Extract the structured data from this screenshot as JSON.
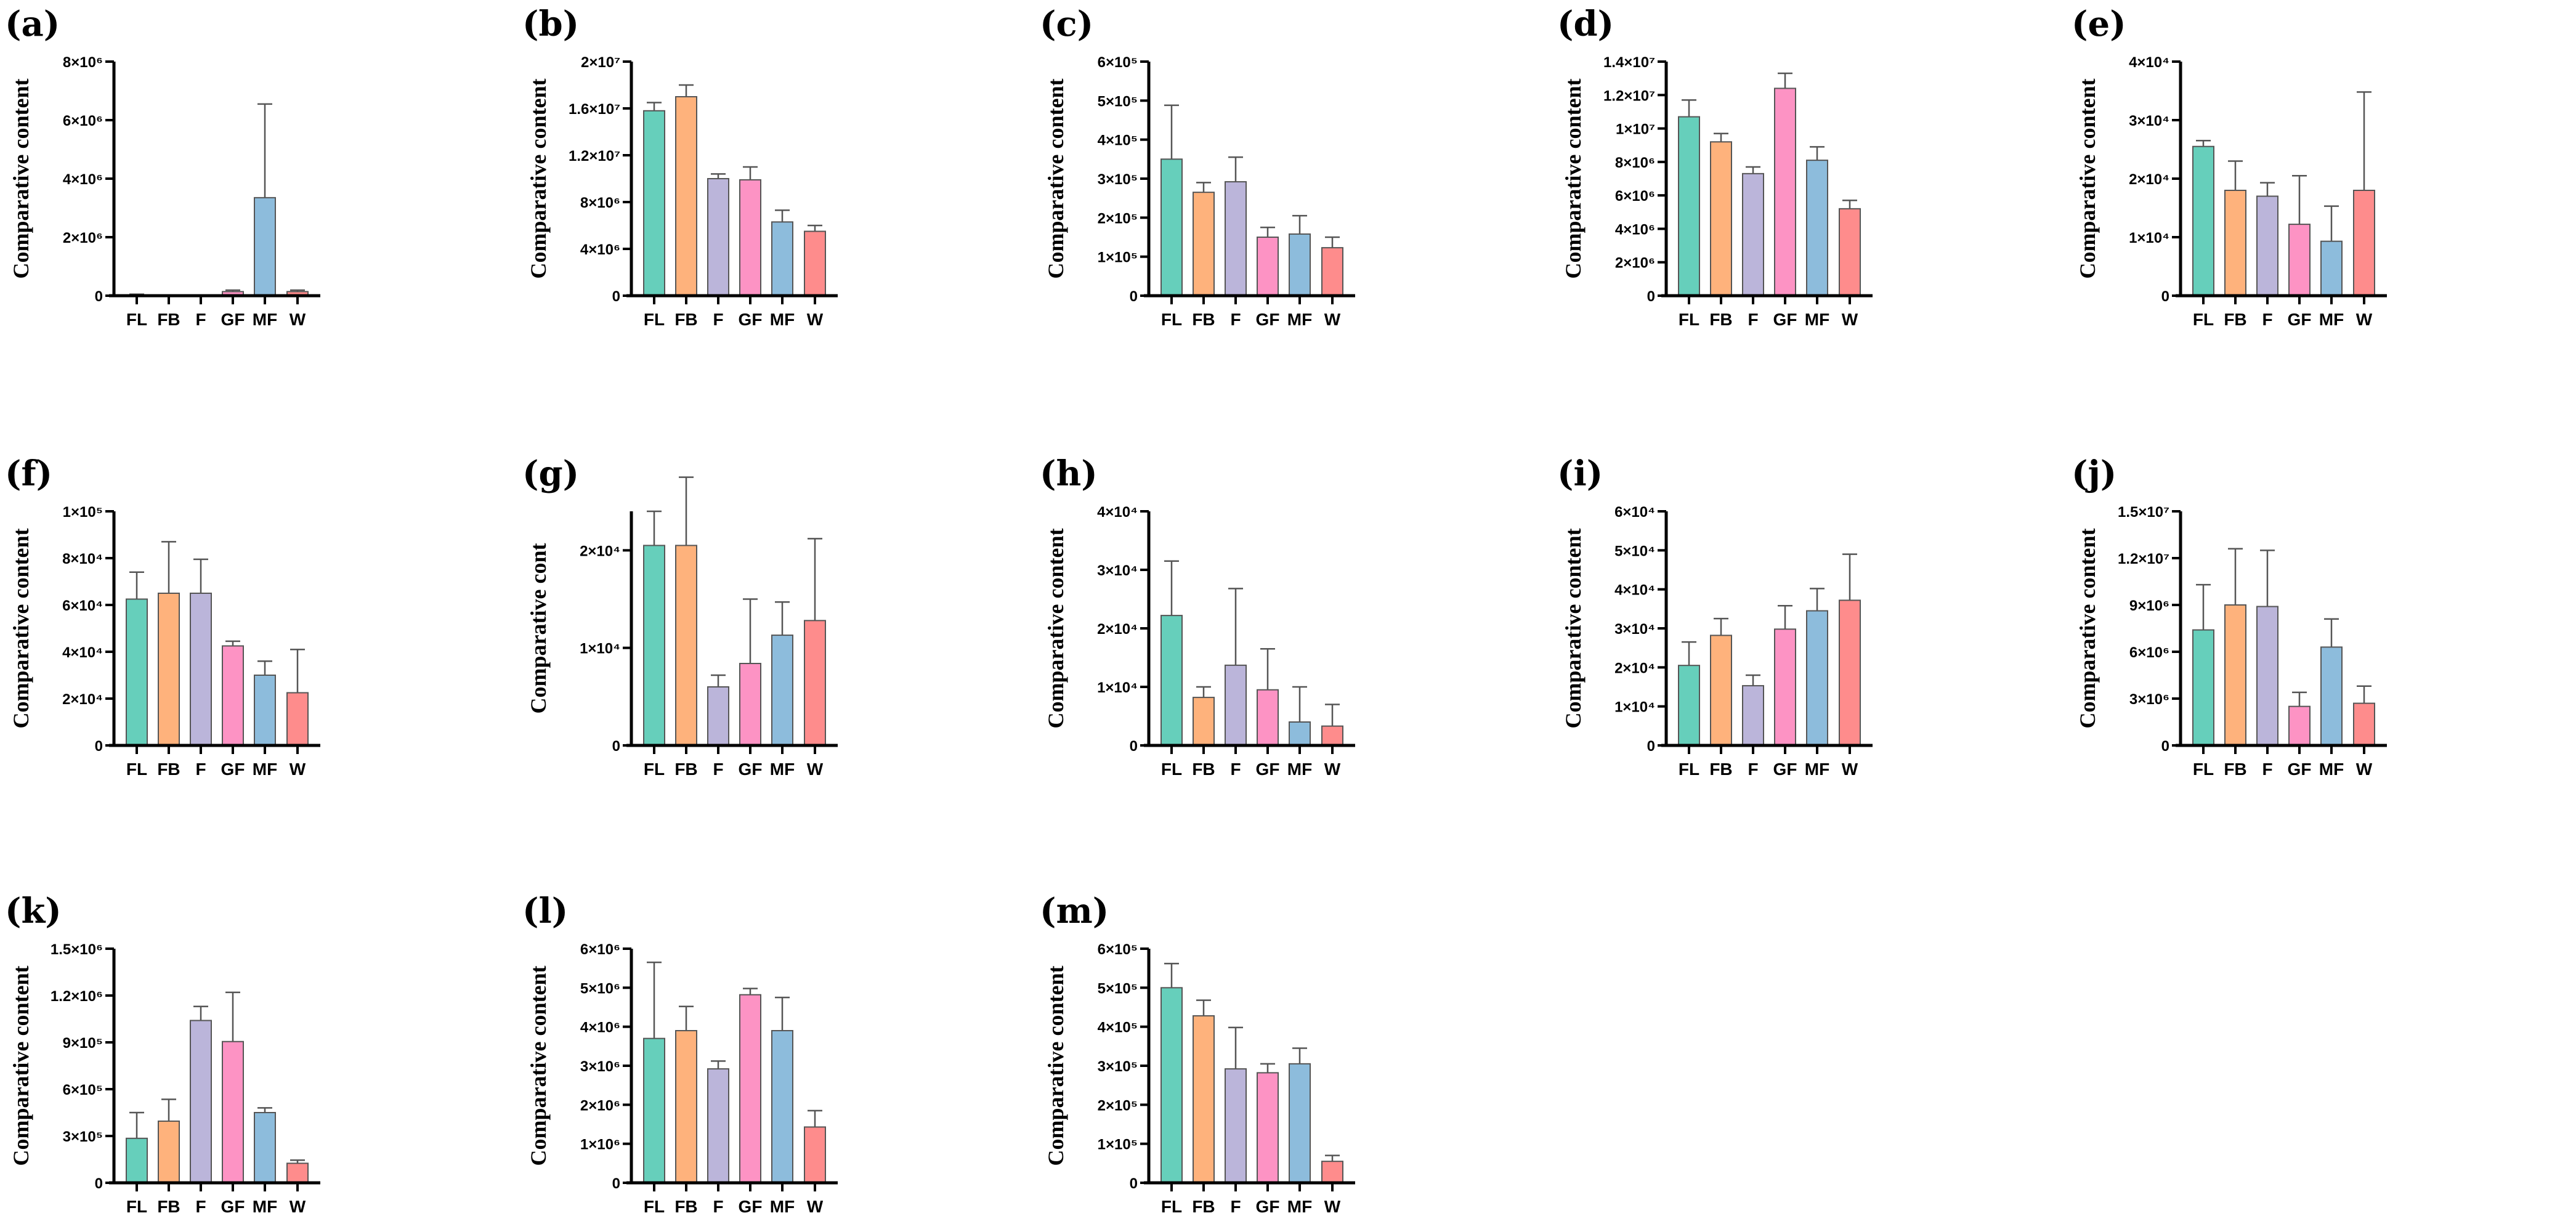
{
  "colors": {
    "FL": "#66cfbb",
    "FB": "#feb27c",
    "F": "#bbb5da",
    "GF": "#fd93c4",
    "MF": "#8dbcdc",
    "W": "#fe8c8c",
    "outline": "#555555",
    "errorbar": "#555555",
    "axis": "#000000"
  },
  "chart_data": [
    {
      "panel": "(a)",
      "type": "bar",
      "ylabel": "Comparative content",
      "categories": [
        "FL",
        "FB",
        "F",
        "GF",
        "MF",
        "W"
      ],
      "values": [
        10000,
        5000,
        2000,
        140000,
        3350000,
        140000
      ],
      "error_upper": [
        50000,
        10000,
        3000,
        190000,
        6550000,
        190000
      ],
      "ylim": [
        0,
        8000000
      ],
      "yticks": [
        0,
        2000000,
        4000000,
        6000000,
        8000000
      ],
      "ytick_labels": [
        "0",
        "2×10⁶",
        "4×10⁶",
        "6×10⁶",
        "8×10⁶"
      ]
    },
    {
      "panel": "(b)",
      "type": "bar",
      "ylabel": "Comparative content",
      "categories": [
        "FL",
        "FB",
        "F",
        "GF",
        "MF",
        "W"
      ],
      "values": [
        15800000,
        17000000,
        10000000,
        9900000,
        6300000,
        5500000
      ],
      "error_upper": [
        16500000,
        18000000,
        10400000,
        11000000,
        7300000,
        6000000
      ],
      "ylim": [
        0,
        20000000
      ],
      "yticks": [
        0,
        4000000,
        8000000,
        12000000,
        16000000,
        20000000
      ],
      "ytick_labels": [
        "0",
        "4×10⁶",
        "8×10⁶",
        "1.2×10⁷",
        "1.6×10⁷",
        "2×10⁷"
      ]
    },
    {
      "panel": "(c)",
      "type": "bar",
      "ylabel": "Comparative content",
      "categories": [
        "FL",
        "FB",
        "F",
        "GF",
        "MF",
        "W"
      ],
      "values": [
        350000,
        265000,
        292000,
        150000,
        158000,
        123000
      ],
      "error_upper": [
        488000,
        290000,
        355000,
        175000,
        205000,
        150000
      ],
      "ylim": [
        0,
        600000
      ],
      "yticks": [
        0,
        100000,
        200000,
        300000,
        400000,
        500000,
        600000
      ],
      "ytick_labels": [
        "0",
        "1×10⁵",
        "2×10⁵",
        "3×10⁵",
        "4×10⁵",
        "5×10⁵",
        "6×10⁵"
      ]
    },
    {
      "panel": "(d)",
      "type": "bar",
      "ylabel": "Comparative content",
      "categories": [
        "FL",
        "FB",
        "F",
        "GF",
        "MF",
        "W"
      ],
      "values": [
        10700000,
        9200000,
        7300000,
        12400000,
        8100000,
        5200000
      ],
      "error_upper": [
        11700000,
        9700000,
        7700000,
        13300000,
        8900000,
        5700000
      ],
      "ylim": [
        0,
        14000000
      ],
      "yticks": [
        0,
        2000000,
        4000000,
        6000000,
        8000000,
        10000000,
        12000000,
        14000000
      ],
      "ytick_labels": [
        "0",
        "2×10⁶",
        "4×10⁶",
        "6×10⁶",
        "8×10⁶",
        "1×10⁷",
        "1.2×10⁷",
        "1.4×10⁷"
      ]
    },
    {
      "panel": "(e)",
      "type": "bar",
      "ylabel": "Comparative content",
      "categories": [
        "FL",
        "FB",
        "F",
        "GF",
        "MF",
        "W"
      ],
      "values": [
        25500,
        18000,
        17000,
        12200,
        9300,
        18000
      ],
      "error_upper": [
        26500,
        23000,
        19300,
        20500,
        15300,
        34800
      ],
      "ylim": [
        0,
        40000
      ],
      "yticks": [
        0,
        10000,
        20000,
        30000,
        40000
      ],
      "ytick_labels": [
        "0",
        "1×10⁴",
        "2×10⁴",
        "3×10⁴",
        "4×10⁴"
      ]
    },
    {
      "panel": "(f)",
      "type": "bar",
      "ylabel": "Comparative content",
      "categories": [
        "FL",
        "FB",
        "F",
        "GF",
        "MF",
        "W"
      ],
      "values": [
        62500,
        65000,
        65000,
        42500,
        30000,
        22500
      ],
      "error_upper": [
        74000,
        87000,
        79500,
        44500,
        36000,
        41000
      ],
      "ylim": [
        0,
        100000
      ],
      "yticks": [
        0,
        20000,
        40000,
        60000,
        80000,
        100000
      ],
      "ytick_labels": [
        "0",
        "2×10⁴",
        "4×10⁴",
        "6×10⁴",
        "8×10⁴",
        "1×10⁵"
      ]
    },
    {
      "panel": "(g)",
      "type": "bar",
      "ylabel": "Comparative cont",
      "categories": [
        "FL",
        "FB",
        "F",
        "GF",
        "MF",
        "W"
      ],
      "values": [
        20500,
        20500,
        6000,
        8400,
        11300,
        12800
      ],
      "error_upper": [
        24000,
        27500,
        7200,
        15000,
        14700,
        21200
      ],
      "ylim": [
        0,
        24000
      ],
      "yticks": [
        0,
        10000,
        20000
      ],
      "ytick_labels": [
        "0",
        "1×10⁴",
        "2×10⁴"
      ]
    },
    {
      "panel": "(h)",
      "type": "bar",
      "ylabel": "Comparative content",
      "categories": [
        "FL",
        "FB",
        "F",
        "GF",
        "MF",
        "W"
      ],
      "values": [
        22200,
        8200,
        13700,
        9500,
        4000,
        3300
      ],
      "error_upper": [
        31500,
        10000,
        26800,
        16500,
        10000,
        7000
      ],
      "ylim": [
        0,
        40000
      ],
      "yticks": [
        0,
        10000,
        20000,
        30000,
        40000
      ],
      "ytick_labels": [
        "0",
        "1×10⁴",
        "2×10⁴",
        "3×10⁴",
        "4×10⁴"
      ]
    },
    {
      "panel": "(i)",
      "type": "bar",
      "ylabel": "Comparative content",
      "categories": [
        "FL",
        "FB",
        "F",
        "GF",
        "MF",
        "W"
      ],
      "values": [
        20500,
        28200,
        15300,
        29800,
        34500,
        37200
      ],
      "error_upper": [
        26500,
        32500,
        18000,
        35800,
        40200,
        49000
      ],
      "ylim": [
        0,
        60000
      ],
      "yticks": [
        0,
        10000,
        20000,
        30000,
        40000,
        50000,
        60000
      ],
      "ytick_labels": [
        "0",
        "1×10⁴",
        "2×10⁴",
        "3×10⁴",
        "4×10⁴",
        "5×10⁴",
        "6×10⁴"
      ]
    },
    {
      "panel": "(j)",
      "type": "bar",
      "ylabel": "Comparative content",
      "categories": [
        "FL",
        "FB",
        "F",
        "GF",
        "MF",
        "W"
      ],
      "values": [
        7400000,
        9000000,
        8900000,
        2500000,
        6300000,
        2700000
      ],
      "error_upper": [
        10300000,
        12600000,
        12500000,
        3400000,
        8100000,
        3800000
      ],
      "ylim": [
        0,
        15000000
      ],
      "yticks": [
        0,
        3000000,
        6000000,
        9000000,
        12000000,
        15000000
      ],
      "ytick_labels": [
        "0",
        "3×10⁶",
        "6×10⁶",
        "9×10⁶",
        "1.2×10⁷",
        "1.5×10⁷"
      ]
    },
    {
      "panel": "(k)",
      "type": "bar",
      "ylabel": "Comparative content",
      "categories": [
        "FL",
        "FB",
        "F",
        "GF",
        "MF",
        "W"
      ],
      "values": [
        285000,
        395000,
        1040000,
        905000,
        450000,
        125000
      ],
      "error_upper": [
        450000,
        535000,
        1130000,
        1220000,
        480000,
        145000
      ],
      "ylim": [
        0,
        1500000
      ],
      "yticks": [
        0,
        300000,
        600000,
        900000,
        1200000,
        1500000
      ],
      "ytick_labels": [
        "0",
        "3×10⁵",
        "6×10⁵",
        "9×10⁵",
        "1.2×10⁶",
        "1.5×10⁶"
      ]
    },
    {
      "panel": "(l)",
      "type": "bar",
      "ylabel": "Comparative content",
      "categories": [
        "FL",
        "FB",
        "F",
        "GF",
        "MF",
        "W"
      ],
      "values": [
        3700000,
        3900000,
        2920000,
        4820000,
        3900000,
        1430000
      ],
      "error_upper": [
        5650000,
        4520000,
        3120000,
        4980000,
        4750000,
        1850000
      ],
      "ylim": [
        0,
        6000000
      ],
      "yticks": [
        0,
        1000000,
        2000000,
        3000000,
        4000000,
        5000000,
        6000000
      ],
      "ytick_labels": [
        "0",
        "1×10⁶",
        "2×10⁶",
        "3×10⁶",
        "4×10⁶",
        "5×10⁶",
        "6×10⁶"
      ]
    },
    {
      "panel": "(m)",
      "type": "bar",
      "ylabel": "Comparative content",
      "categories": [
        "FL",
        "FB",
        "F",
        "GF",
        "MF",
        "W"
      ],
      "values": [
        500000,
        428000,
        292000,
        282000,
        305000,
        55000
      ],
      "error_upper": [
        562000,
        468000,
        398000,
        305000,
        345000,
        70000
      ],
      "ylim": [
        0,
        600000
      ],
      "yticks": [
        0,
        100000,
        200000,
        300000,
        400000,
        500000,
        600000
      ],
      "ytick_labels": [
        "0",
        "1×10⁵",
        "2×10⁵",
        "3×10⁵",
        "4×10⁵",
        "5×10⁵",
        "6×10⁵"
      ]
    }
  ]
}
